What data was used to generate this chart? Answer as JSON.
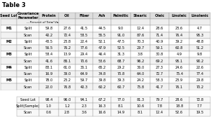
{
  "title": "Table 3",
  "col_headers": [
    "Protein",
    "Oil",
    "Fiber",
    "Ash",
    "Palmitic",
    "Stearic",
    "Oleic",
    "Linoleic",
    "Linolenic"
  ],
  "subtitle": "Percent of Total Variance",
  "seed_lots": [
    "M1",
    "",
    "M2",
    "",
    "M3",
    "",
    "M4",
    "",
    "M5",
    ""
  ],
  "cov_params": [
    "Split",
    "Scan",
    "Split",
    "Scan",
    "Split",
    "Scan",
    "Split",
    "Scan",
    "Split",
    "Scan"
  ],
  "data_rows": [
    [
      "59.8",
      "27.6",
      "41.5",
      "44.5",
      "9.0",
      "12.4",
      "28.6",
      "23.6",
      "4.7"
    ],
    [
      "40.2",
      "72.4",
      "58.5",
      "55.5",
      "91.0",
      "87.6",
      "71.4",
      "76.4",
      "95.3"
    ],
    [
      "43.5",
      "23.8",
      "22.4",
      "52.1",
      "47.5",
      "70.3",
      "40.9",
      "39.2",
      "48.8"
    ],
    [
      "56.5",
      "76.2",
      "77.6",
      "47.9",
      "52.5",
      "29.7",
      "59.1",
      "60.8",
      "51.2"
    ],
    [
      "58.4",
      "13.9",
      "29.4",
      "46.4",
      "31.3",
      "3.8",
      "30.8",
      "4.9",
      "9.8"
    ],
    [
      "41.6",
      "86.1",
      "70.6",
      "53.6",
      "68.7",
      "96.2",
      "69.2",
      "95.1",
      "90.2"
    ],
    [
      "83.1",
      "61.0",
      "35.1",
      "65.2",
      "29.2",
      "36.0",
      "27.3",
      "24.6",
      "22.6"
    ],
    [
      "16.9",
      "39.0",
      "64.9",
      "34.8",
      "70.8",
      "64.0",
      "72.7",
      "75.4",
      "77.4"
    ],
    [
      "78.0",
      "23.2",
      "59.7",
      "39.8",
      "39.3",
      "24.2",
      "58.3",
      "23.9",
      "29.8"
    ],
    [
      "22.0",
      "76.8",
      "40.3",
      "60.2",
      "60.7",
      "75.8",
      "41.7",
      "76.1",
      "70.2"
    ]
  ],
  "bottom_labels": [
    "Seed Lot",
    "Split(Sample)",
    "Scan"
  ],
  "bottom_data": [
    [
      "98.4",
      "96.0",
      "94.1",
      "67.2",
      "77.0",
      "81.3",
      "79.7",
      "28.6",
      "72.8"
    ],
    [
      "1.0",
      "1.2",
      "2.3",
      "16.3",
      "8.1",
      "10.6",
      "7.8",
      "18.8",
      "7.7"
    ],
    [
      "0.6",
      "2.8",
      "3.6",
      "16.6",
      "14.9",
      "8.1",
      "12.4",
      "52.6",
      "19.5"
    ]
  ]
}
